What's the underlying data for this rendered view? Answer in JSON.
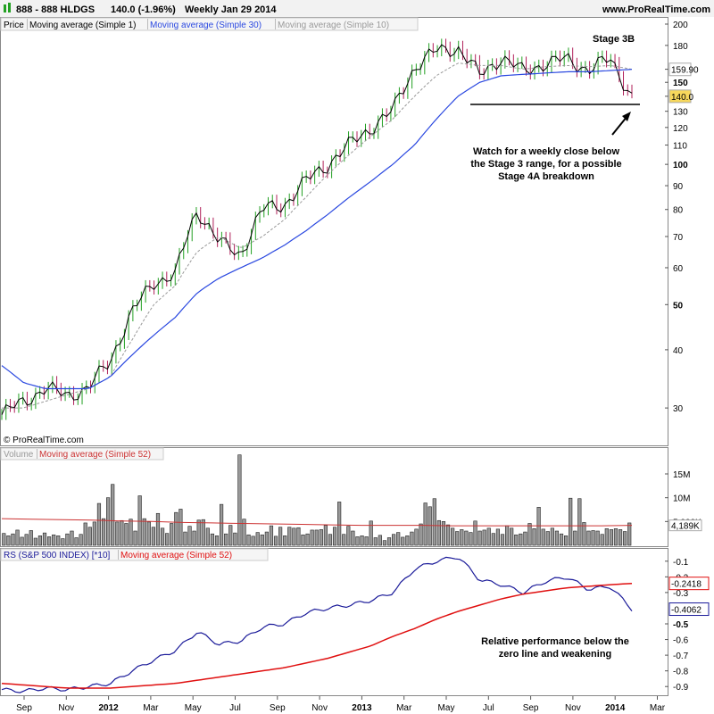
{
  "header": {
    "title": "888 - 888 HLDGS",
    "quote": "140.0 (-1.96%)",
    "period": "Weekly  Jan 29 2014",
    "site": "www.ProRealTime.com"
  },
  "price_panel": {
    "legend": [
      "Price",
      "Moving average (Simple 1)",
      "Moving average (Simple 30)",
      "Moving average (Simple 10)"
    ],
    "watermark": "© ProRealTime.com",
    "y_ticks": [
      "200",
      "180",
      "160",
      "150",
      "140",
      "130",
      "120",
      "110",
      "100",
      "90",
      "80",
      "70",
      "60",
      "50",
      "40",
      "30"
    ],
    "badges": [
      "159.90",
      "140.0"
    ],
    "annotation_stage": "Stage 3B",
    "annotation_note": [
      "Watch for a weekly close below",
      "the Stage 3 range, for a possible",
      "Stage 4A breakdown"
    ]
  },
  "volume_panel": {
    "legend": [
      "Volume",
      "Moving average (Simple 52)"
    ],
    "y_ticks": [
      "15M",
      "10M",
      "5.000K"
    ],
    "badge": "4,189K"
  },
  "rs_panel": {
    "legend": [
      "RS (S&P 500 INDEX) [*10]",
      "Moving average (Simple 52)"
    ],
    "y_ticks": [
      "-0.1",
      "-0.2",
      "-0.3",
      "-0.5",
      "-0.6",
      "-0.7",
      "-0.8",
      "-0.9"
    ],
    "badges": [
      "-0.2418",
      "-0.4062"
    ],
    "annotation_note": [
      "Relative performance below the",
      "zero line and weakening"
    ]
  },
  "x_axis": {
    "labels": [
      "Sep",
      "Nov",
      "2012",
      "Mar",
      "May",
      "Jul",
      "Sep",
      "Nov",
      "2013",
      "Mar",
      "May",
      "Jul",
      "Sep",
      "Nov",
      "2014",
      "Mar"
    ]
  },
  "colors": {
    "up": "#22a022",
    "down": "#b0205a",
    "ma1": "#000000",
    "ma30": "#2a48e0",
    "ma10": "#999999",
    "rs": "#1a1a99",
    "rs_ma": "#e01010",
    "vol_ma": "#cc3333",
    "badge_yellow": "#f7d85c"
  },
  "chart_data": [
    {
      "type": "line",
      "title": "888 - 888 HLDGS Weekly",
      "scale": "log",
      "ylim": [
        27,
        200
      ],
      "x": [
        "2011-08",
        "2011-09",
        "2011-10",
        "2011-11",
        "2011-12",
        "2012-01",
        "2012-02",
        "2012-03",
        "2012-04",
        "2012-05",
        "2012-06",
        "2012-07",
        "2012-08",
        "2012-09",
        "2012-10",
        "2012-11",
        "2012-12",
        "2013-01",
        "2013-02",
        "2013-03",
        "2013-04",
        "2013-05",
        "2013-06",
        "2013-07",
        "2013-08",
        "2013-09",
        "2013-10",
        "2013-11",
        "2013-12",
        "2014-01"
      ],
      "series": [
        {
          "name": "Price",
          "values": [
            29,
            31,
            33,
            32,
            33,
            38,
            48,
            56,
            58,
            80,
            68,
            64,
            80,
            82,
            92,
            100,
            110,
            120,
            130,
            162,
            175,
            178,
            155,
            170,
            158,
            165,
            168,
            160,
            168,
            140
          ]
        },
        {
          "name": "Moving average (Simple 30)",
          "values": [
            37,
            34,
            33,
            33,
            33,
            35,
            39,
            43,
            47,
            53,
            57,
            60,
            63,
            67,
            72,
            78,
            85,
            92,
            100,
            110,
            125,
            140,
            150,
            155,
            156,
            157,
            158,
            158,
            159,
            159.9
          ]
        },
        {
          "name": "Moving average (Simple 10)",
          "values": [
            30,
            30,
            31,
            32,
            33,
            35,
            42,
            50,
            55,
            65,
            70,
            66,
            70,
            76,
            85,
            95,
            105,
            115,
            125,
            140,
            155,
            165,
            163,
            163,
            160,
            162,
            163,
            162,
            163,
            160
          ]
        }
      ]
    },
    {
      "type": "bar",
      "title": "Volume",
      "ylim": [
        0,
        18000000
      ],
      "series": [
        {
          "name": "Volume",
          "values": [
            2.5,
            2.0,
            2.4,
            3.2,
            1.7,
            2.3,
            3.1,
            1.5,
            2.0,
            2.6,
            1.8,
            2.2,
            2.0,
            1.4,
            2.4,
            3.0,
            1.6,
            2.3,
            4.7,
            3.8,
            4.9,
            8.8,
            5.6,
            10.0,
            12.8,
            4.9,
            5.2,
            4.6,
            5.5,
            3.0,
            10.4,
            5.6,
            4.9,
            3.8,
            6.7,
            3.6,
            2.5,
            4.6,
            6.9,
            7.6,
            2.8,
            4.0,
            3.0,
            5.3,
            5.4,
            3.6,
            2.4,
            2.0,
            8.6,
            2.4,
            4.2,
            2.6,
            19.0,
            5.5,
            2.2,
            1.9,
            2.7,
            2.2,
            2.8,
            4.1,
            1.9,
            3.8,
            2.0,
            3.8,
            3.6,
            3.7,
            2.2,
            2.4,
            3.2,
            3.2,
            3.3,
            4.2,
            2.3,
            3.8,
            9.1,
            2.3,
            4.0,
            3.0,
            1.8,
            2.0,
            1.8,
            5.1,
            1.6,
            2.1,
            1.0,
            1.6,
            2.3,
            2.7,
            1.7,
            2.0,
            2.8,
            3.4,
            4.5,
            8.9,
            8.1,
            9.8,
            5.2,
            5.0,
            4.3,
            3.6,
            2.9,
            3.3,
            3.0,
            2.7,
            5.1,
            3.0,
            3.2,
            3.6,
            2.5,
            3.4,
            2.3,
            4.1,
            3.6,
            2.2,
            2.4,
            2.8,
            4.6,
            3.5,
            8.0,
            3.4,
            2.9,
            3.6,
            3.0,
            2.4,
            2.0,
            9.9,
            3.0,
            9.8,
            4.8,
            3.0,
            3.1,
            3.0,
            2.3,
            3.5,
            3.3,
            3.5,
            3.3,
            2.9,
            4.7
          ]
        },
        {
          "name": "Moving average (Simple 52)",
          "values": [
            5.6,
            5.5,
            5.4,
            5.3,
            5.1,
            5.0,
            4.8,
            4.7,
            4.6,
            4.5,
            4.4,
            4.3,
            4.2,
            4.2,
            4.2,
            4.1,
            4.1,
            4.1,
            4.1,
            4.1,
            4.1,
            4.2
          ]
        }
      ]
    },
    {
      "type": "line",
      "title": "RS (S&P 500 INDEX) [*10]",
      "ylim": [
        -0.95,
        -0.05
      ],
      "series": [
        {
          "name": "RS (S&P 500 INDEX) [*10]",
          "values": [
            -0.92,
            -0.93,
            -0.91,
            -0.92,
            -0.9,
            -0.88,
            -0.8,
            -0.73,
            -0.67,
            -0.55,
            -0.63,
            -0.61,
            -0.52,
            -0.5,
            -0.43,
            -0.4,
            -0.38,
            -0.35,
            -0.3,
            -0.15,
            -0.1,
            -0.07,
            -0.22,
            -0.25,
            -0.3,
            -0.23,
            -0.2,
            -0.28,
            -0.26,
            -0.4062
          ]
        },
        {
          "name": "Moving average (Simple 52)",
          "values": [
            -0.88,
            -0.89,
            -0.9,
            -0.91,
            -0.91,
            -0.91,
            -0.9,
            -0.89,
            -0.88,
            -0.86,
            -0.84,
            -0.82,
            -0.8,
            -0.78,
            -0.75,
            -0.72,
            -0.68,
            -0.64,
            -0.58,
            -0.53,
            -0.47,
            -0.42,
            -0.38,
            -0.34,
            -0.31,
            -0.29,
            -0.27,
            -0.26,
            -0.25,
            -0.2418
          ]
        }
      ]
    }
  ]
}
